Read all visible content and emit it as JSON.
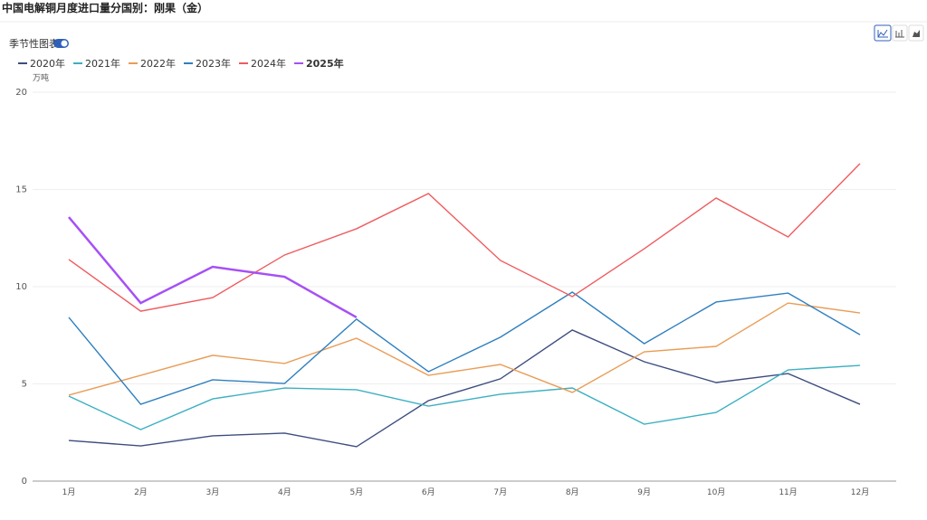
{
  "chart_data": {
    "type": "line",
    "title": "中国电解铜月度进口量分国别：刚果（金）",
    "toggle_label": "季节性图表",
    "y_unit": "万吨",
    "categories": [
      "1月",
      "2月",
      "3月",
      "4月",
      "5月",
      "6月",
      "7月",
      "8月",
      "9月",
      "10月",
      "11月",
      "12月"
    ],
    "ylim": [
      0,
      20
    ],
    "yticks": [
      0,
      5,
      10,
      15,
      20
    ],
    "grid": true,
    "legend": "top-left",
    "series": [
      {
        "name": "2020年",
        "color": "#3d4d7f",
        "values": [
          2.09,
          1.81,
          2.33,
          2.47,
          1.77,
          4.14,
          5.26,
          7.77,
          6.14,
          5.07,
          5.53,
          3.95
        ]
      },
      {
        "name": "2021年",
        "color": "#3bb0c0",
        "values": [
          4.37,
          2.65,
          4.23,
          4.79,
          4.7,
          3.86,
          4.47,
          4.79,
          2.93,
          3.53,
          5.72,
          5.95
        ]
      },
      {
        "name": "2022年",
        "color": "#e99d57",
        "values": [
          4.42,
          5.44,
          6.47,
          6.05,
          7.35,
          5.44,
          6.0,
          4.56,
          6.65,
          6.93,
          9.16,
          8.65
        ]
      },
      {
        "name": "2023年",
        "color": "#2f7fbf",
        "values": [
          8.42,
          3.95,
          5.21,
          5.02,
          8.33,
          5.63,
          7.4,
          9.72,
          7.07,
          9.21,
          9.67,
          7.53
        ]
      },
      {
        "name": "2024年",
        "color": "#ef5b5f",
        "values": [
          11.4,
          8.74,
          9.44,
          11.63,
          12.98,
          14.79,
          11.35,
          9.49,
          11.95,
          14.56,
          12.56,
          16.33
        ]
      },
      {
        "name": "2025年",
        "color": "#a650f5",
        "values": [
          13.58,
          9.16,
          11.02,
          10.51,
          8.42,
          null,
          null,
          null,
          null,
          null,
          null,
          null
        ]
      }
    ]
  }
}
